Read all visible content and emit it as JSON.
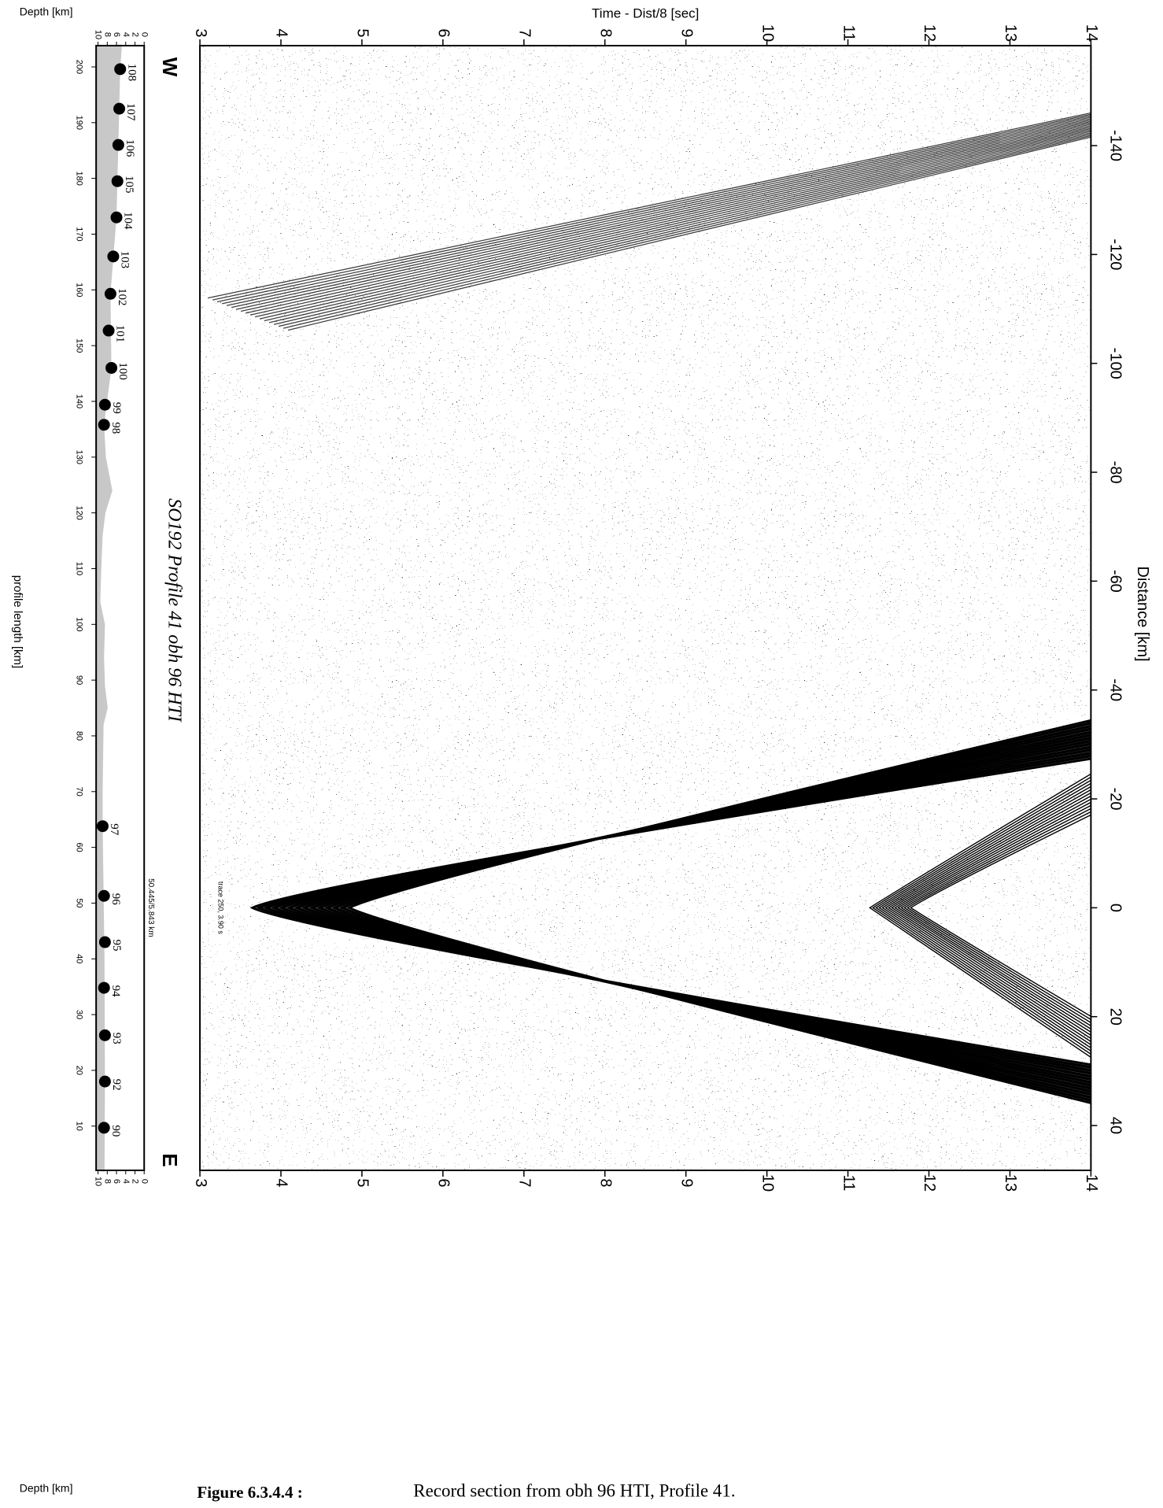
{
  "figure": {
    "time_axis": {
      "label": "Time - Dist/8 [sec]",
      "ticks": [
        3,
        4,
        5,
        6,
        7,
        8,
        9,
        10,
        11,
        12,
        13,
        14
      ],
      "lim": [
        3,
        14
      ]
    },
    "distance_axis": {
      "label": "Distance [km]",
      "ticks": [
        -140,
        -120,
        -100,
        -80,
        -60,
        -40,
        -20,
        0,
        20,
        40
      ]
    },
    "depth_axis": {
      "label": "Depth [km]",
      "ticks": [
        0,
        2,
        4,
        6,
        8,
        10
      ],
      "lim": [
        0,
        10
      ]
    },
    "profile_axis": {
      "label": "profile length [km]",
      "ticks": [
        200,
        190,
        180,
        170,
        160,
        150,
        140,
        130,
        120,
        110,
        100,
        90,
        80,
        70,
        60,
        50,
        40,
        30,
        20,
        10
      ]
    },
    "west": "W",
    "east": "E",
    "title": "SO192 Profile 41 obh 96 HTI",
    "position_note": "50.445/5.843 km",
    "trace_note": "trace 250, 3.90 s",
    "stations": [
      {
        "label": "108",
        "km": 199.6,
        "depth": 5.2
      },
      {
        "label": "107",
        "km": 192.5,
        "depth": 5.4
      },
      {
        "label": "106",
        "km": 186,
        "depth": 5.6
      },
      {
        "label": "105",
        "km": 179.5,
        "depth": 5.8
      },
      {
        "label": "104",
        "km": 173,
        "depth": 6
      },
      {
        "label": "103",
        "km": 166,
        "depth": 6.7
      },
      {
        "label": "102",
        "km": 159.3,
        "depth": 7.3
      },
      {
        "label": "101",
        "km": 152.7,
        "depth": 7.7
      },
      {
        "label": "100",
        "km": 146,
        "depth": 7.1
      },
      {
        "label": "99",
        "km": 139.4,
        "depth": 8.5
      },
      {
        "label": "98",
        "km": 135.8,
        "depth": 8.7
      },
      {
        "label": "97",
        "km": 63.8,
        "depth": 9
      },
      {
        "label": "96",
        "km": 51.3,
        "depth": 8.7
      },
      {
        "label": "95",
        "km": 43,
        "depth": 8.5
      },
      {
        "label": "94",
        "km": 34.8,
        "depth": 8.7
      },
      {
        "label": "93",
        "km": 26.3,
        "depth": 8.5
      },
      {
        "label": "92",
        "km": 18,
        "depth": 8.5
      },
      {
        "label": "90",
        "km": 9.7,
        "depth": 8.7
      }
    ],
    "seafloor": [
      [
        204,
        4.8
      ],
      [
        199.6,
        5.2
      ],
      [
        186,
        5.6
      ],
      [
        173,
        6
      ],
      [
        159.3,
        7.3
      ],
      [
        146,
        7.1
      ],
      [
        135.8,
        8.7
      ],
      [
        130,
        8.3
      ],
      [
        124,
        6.9
      ],
      [
        120,
        8.4
      ],
      [
        116,
        9
      ],
      [
        110,
        9.3
      ],
      [
        104,
        9.5
      ],
      [
        100,
        8.5
      ],
      [
        94,
        8.7
      ],
      [
        89,
        8.5
      ],
      [
        85,
        7.9
      ],
      [
        82,
        8.8
      ],
      [
        70,
        9
      ],
      [
        63.8,
        9
      ],
      [
        40,
        8.6
      ],
      [
        18,
        8.5
      ],
      [
        1.8,
        8.6
      ]
    ],
    "caption_label": "Figure 6.3.4.4 :",
    "caption": "Record section from obh 96 HTI, Profile 41."
  }
}
